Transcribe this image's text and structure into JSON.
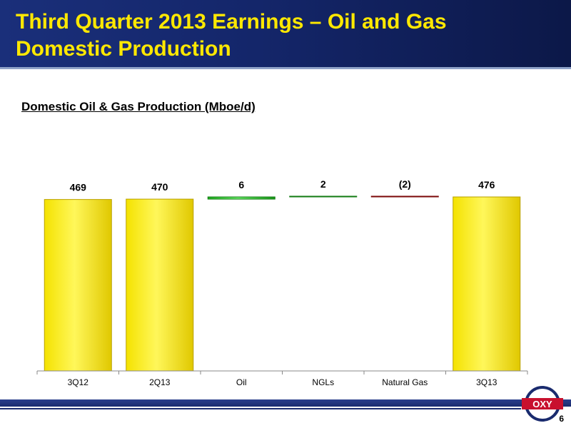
{
  "header": {
    "title_line1": "Third Quarter 2013 Earnings – Oil and Gas",
    "title_line2": "Domestic Production"
  },
  "subtitle": "Domestic Oil & Gas Production (Mboe/d)",
  "colors": {
    "title": "#ffe800",
    "header_bg": "#14266a",
    "total_bar": "#f2dd00",
    "increase_bar": "#22b422",
    "decrease_bar": "#c01818"
  },
  "chart_data": {
    "type": "bar",
    "subtype": "waterfall",
    "categories": [
      "3Q12",
      "2Q13",
      "Oil",
      "NGLs",
      "Natural Gas",
      "3Q13"
    ],
    "bars": [
      {
        "category": "3Q12",
        "kind": "total",
        "value": 469,
        "label": "469"
      },
      {
        "category": "2Q13",
        "kind": "total",
        "value": 470,
        "label": "470"
      },
      {
        "category": "Oil",
        "kind": "increase",
        "value": 6,
        "label": "6"
      },
      {
        "category": "NGLs",
        "kind": "increase",
        "value": 2,
        "label": "2"
      },
      {
        "category": "Natural Gas",
        "kind": "decrease",
        "value": -2,
        "label": "(2)"
      },
      {
        "category": "3Q13",
        "kind": "total",
        "value": 476,
        "label": "476"
      }
    ],
    "grid": false,
    "legend": "none"
  },
  "logo": {
    "text": "OXY"
  },
  "page_number": "6"
}
